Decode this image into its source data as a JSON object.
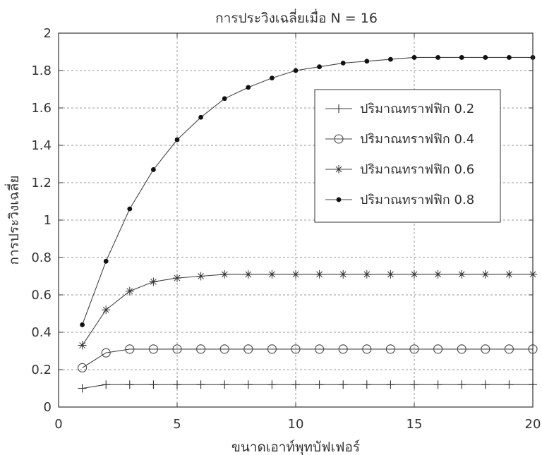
{
  "chart_data": {
    "type": "line",
    "title": "การประวิงเฉลี่ยเมื่อ N = 16",
    "xlabel": "ขนาดเอาท์พุทบัฟเฟอร์",
    "ylabel": "การประวิงเฉลี่ย",
    "xlim": [
      0,
      20
    ],
    "ylim": [
      0,
      2
    ],
    "xticks": [
      0,
      5,
      10,
      15,
      20
    ],
    "yticks": [
      0,
      0.2,
      0.4,
      0.6,
      0.8,
      1,
      1.2,
      1.4,
      1.6,
      1.8,
      2
    ],
    "xtick_labels": [
      "0",
      "5",
      "10",
      "15",
      "20"
    ],
    "ytick_labels": [
      "0",
      "0.2",
      "0.4",
      "0.6",
      "0.8",
      "1",
      "1.2",
      "1.4",
      "1.6",
      "1.8",
      "2"
    ],
    "grid": true,
    "legend_position": "upper-right",
    "x": [
      1,
      2,
      3,
      4,
      5,
      6,
      7,
      8,
      9,
      10,
      11,
      12,
      13,
      14,
      15,
      16,
      17,
      18,
      19,
      20
    ],
    "series": [
      {
        "name": "ปริมาณทราฟฟิก 0.2",
        "marker": "plus",
        "values": [
          0.1,
          0.12,
          0.12,
          0.12,
          0.12,
          0.12,
          0.12,
          0.12,
          0.12,
          0.12,
          0.12,
          0.12,
          0.12,
          0.12,
          0.12,
          0.12,
          0.12,
          0.12,
          0.12,
          0.12
        ]
      },
      {
        "name": "ปริมาณทราฟฟิก 0.4",
        "marker": "circle",
        "values": [
          0.21,
          0.29,
          0.31,
          0.31,
          0.31,
          0.31,
          0.31,
          0.31,
          0.31,
          0.31,
          0.31,
          0.31,
          0.31,
          0.31,
          0.31,
          0.31,
          0.31,
          0.31,
          0.31,
          0.31
        ]
      },
      {
        "name": "ปริมาณทราฟฟิก 0.6",
        "marker": "star",
        "values": [
          0.33,
          0.52,
          0.62,
          0.67,
          0.69,
          0.7,
          0.71,
          0.71,
          0.71,
          0.71,
          0.71,
          0.71,
          0.71,
          0.71,
          0.71,
          0.71,
          0.71,
          0.71,
          0.71,
          0.71
        ]
      },
      {
        "name": "ปริมาณทราฟฟิก 0.8",
        "marker": "dot",
        "values": [
          0.44,
          0.78,
          1.06,
          1.27,
          1.43,
          1.55,
          1.65,
          1.71,
          1.76,
          1.8,
          1.82,
          1.84,
          1.85,
          1.86,
          1.87,
          1.87,
          1.87,
          1.87,
          1.87,
          1.87
        ]
      }
    ]
  }
}
